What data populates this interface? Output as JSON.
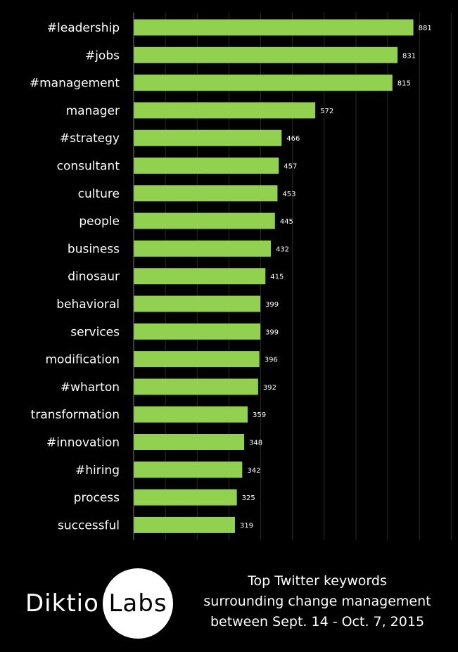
{
  "chart_data": {
    "type": "bar",
    "orientation": "horizontal",
    "categories": [
      "#leadership",
      "#jobs",
      "#management",
      "manager",
      "#strategy",
      "consultant",
      "culture",
      "people",
      "business",
      "dinosaur",
      "behavioral",
      "services",
      "modification",
      "#wharton",
      "transformation",
      "#innovation",
      "#hiring",
      "process",
      "successful"
    ],
    "values": [
      881,
      831,
      815,
      572,
      466,
      457,
      453,
      445,
      432,
      415,
      399,
      399,
      396,
      392,
      359,
      348,
      342,
      325,
      319
    ],
    "xlim": [
      0,
      1000
    ],
    "grid": true,
    "bar_color": "#92d050",
    "data_labels": true
  },
  "caption": {
    "lines": [
      "Top Twitter keywords",
      "surrounding change management",
      "between Sept. 14 - Oct. 7, 2015"
    ]
  },
  "logo": {
    "left_text": "Diktio",
    "right_text": "Labs"
  }
}
